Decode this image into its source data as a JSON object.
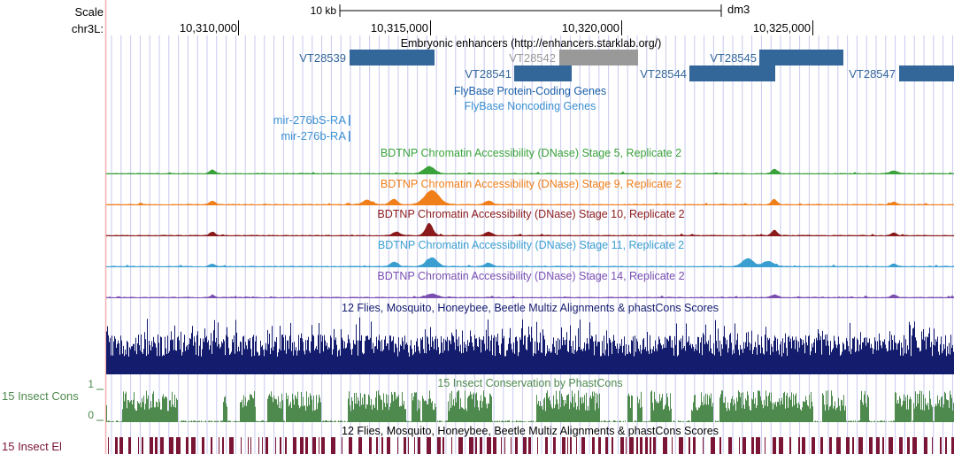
{
  "ruler": {
    "scale_label": "Scale",
    "chrom_label": "chr3L:",
    "scale_bar_text": "10 kb",
    "assembly": "dm3",
    "positions": [
      "10,310,000",
      "10,315,000",
      "10,320,000",
      "10,325,000"
    ]
  },
  "enhancers": {
    "title": "Embryonic enhancers (http://enhancers.starklab.org/)",
    "color": "#336699",
    "muted_color": "#999999",
    "items": [
      {
        "label": "VT28539",
        "muted": false
      },
      {
        "label": "VT28541",
        "muted": false
      },
      {
        "label": "VT28542",
        "muted": true
      },
      {
        "label": "VT28544",
        "muted": false
      },
      {
        "label": "VT28545",
        "muted": false
      },
      {
        "label": "VT28547",
        "muted": false
      }
    ]
  },
  "flybase": {
    "coding_title": "FlyBase Protein-Coding Genes",
    "coding_color": "#1a5fa8",
    "noncoding_title": "FlyBase Noncoding Genes",
    "noncoding_color": "#3a8fd0",
    "genes": [
      "mir-276bS-RA",
      "mir-276b-RA"
    ]
  },
  "dnase_tracks": [
    {
      "title": "BDTNP Chromatin Accessibility (DNase) Stage 5, Replicate 2",
      "color": "#3aa23a"
    },
    {
      "title": "BDTNP Chromatin Accessibility (DNase) Stage 9, Replicate 2",
      "color": "#f07f1a"
    },
    {
      "title": "BDTNP Chromatin Accessibility (DNase) Stage 10, Replicate 2",
      "color": "#8b1a1a"
    },
    {
      "title": "BDTNP Chromatin Accessibility (DNase) Stage 11, Replicate 2",
      "color": "#3a9fd0"
    },
    {
      "title": "BDTNP Chromatin Accessibility (DNase) Stage 14, Replicate 2",
      "color": "#7a4fb0"
    }
  ],
  "multiz": {
    "title": "12 Flies, Mosquito, Honeybee, Beetle Multiz Alignments & phastCons Scores",
    "color": "#141c6e"
  },
  "phastcons": {
    "title": "15 Insect Conservation by PhastCons",
    "side_label": "15 Insect Cons",
    "max_label": "1",
    "min_label": "0",
    "color": "#4e8a4e"
  },
  "elements": {
    "title": "12 Flies, Mosquito, Honeybee, Beetle Multiz Alignments & phastCons Scores",
    "side_label": "15 Insect El",
    "color": "#7a1535"
  },
  "colors": {
    "grid": "#c8c8f0",
    "left_margin_line": "#f4b0b0",
    "ruler": "#000000"
  }
}
